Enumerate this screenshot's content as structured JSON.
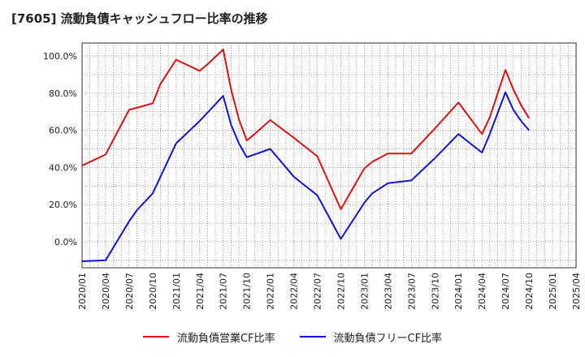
{
  "chart_data": {
    "type": "line",
    "title": "[7605]  流動負債キャッシュフロー比率の推移",
    "x": [
      "2020/01",
      "2020/04",
      "2020/07",
      "2020/08",
      "2020/10",
      "2020/11",
      "2021/01",
      "2021/04",
      "2021/05",
      "2021/07",
      "2021/08",
      "2021/09",
      "2021/10",
      "2021/11",
      "2022/01",
      "2022/04",
      "2022/07",
      "2022/10",
      "2023/01",
      "2023/02",
      "2023/04",
      "2023/07",
      "2023/10",
      "2024/01",
      "2024/04",
      "2024/05",
      "2024/07",
      "2024/08",
      "2024/09",
      "2024/10"
    ],
    "x_ticks": [
      "2020/01",
      "2020/04",
      "2020/07",
      "2020/10",
      "2021/01",
      "2021/04",
      "2021/07",
      "2021/10",
      "2022/01",
      "2022/04",
      "2022/07",
      "2022/10",
      "2023/01",
      "2023/04",
      "2023/07",
      "2023/10",
      "2024/01",
      "2024/04",
      "2024/07",
      "2024/10",
      "2025/01",
      "2025/04"
    ],
    "x_range": [
      "2020/01",
      "2025/04"
    ],
    "ylim": [
      -14,
      107
    ],
    "y_ticks": [
      0,
      20,
      40,
      60,
      80,
      100
    ],
    "y_tick_labels": [
      "0.0%",
      "20.0%",
      "40.0%",
      "60.0%",
      "80.0%",
      "100.0%"
    ],
    "grid": true,
    "legend_position": "bottom-center",
    "series": [
      {
        "name": "流動負債営業CF比率",
        "color": "#dd1111",
        "points": [
          [
            "2020/01",
            41
          ],
          [
            "2020/04",
            47
          ],
          [
            "2020/07",
            71
          ],
          [
            "2020/10",
            74.5
          ],
          [
            "2020/11",
            85
          ],
          [
            "2021/01",
            98
          ],
          [
            "2021/04",
            92
          ],
          [
            "2021/05",
            95.5
          ],
          [
            "2021/07",
            103.5
          ],
          [
            "2021/08",
            82
          ],
          [
            "2021/09",
            66
          ],
          [
            "2021/10",
            54.5
          ],
          [
            "2021/11",
            58
          ],
          [
            "2022/01",
            65.5
          ],
          [
            "2022/04",
            56
          ],
          [
            "2022/07",
            46
          ],
          [
            "2022/10",
            17.5
          ],
          [
            "2023/01",
            39.5
          ],
          [
            "2023/02",
            43
          ],
          [
            "2023/04",
            47.5
          ],
          [
            "2023/07",
            47.5
          ],
          [
            "2023/10",
            61
          ],
          [
            "2024/01",
            75
          ],
          [
            "2024/04",
            58
          ],
          [
            "2024/05",
            67
          ],
          [
            "2024/07",
            92.5
          ],
          [
            "2024/08",
            82
          ],
          [
            "2024/09",
            73.5
          ],
          [
            "2024/10",
            66.5
          ]
        ]
      },
      {
        "name": "流動負債フリーCF比率",
        "color": "#1111dd",
        "points": [
          [
            "2020/01",
            -10.5
          ],
          [
            "2020/04",
            -10
          ],
          [
            "2020/07",
            11
          ],
          [
            "2020/08",
            17
          ],
          [
            "2020/10",
            26
          ],
          [
            "2020/11",
            35
          ],
          [
            "2021/01",
            53
          ],
          [
            "2021/04",
            65
          ],
          [
            "2021/05",
            69.5
          ],
          [
            "2021/07",
            78.5
          ],
          [
            "2021/08",
            63
          ],
          [
            "2021/09",
            53
          ],
          [
            "2021/10",
            45.5
          ],
          [
            "2021/11",
            47
          ],
          [
            "2022/01",
            50
          ],
          [
            "2022/04",
            35
          ],
          [
            "2022/07",
            25
          ],
          [
            "2022/10",
            1.5
          ],
          [
            "2023/01",
            21
          ],
          [
            "2023/02",
            26
          ],
          [
            "2023/04",
            31.5
          ],
          [
            "2023/07",
            33
          ],
          [
            "2023/10",
            45
          ],
          [
            "2024/01",
            58
          ],
          [
            "2024/04",
            48
          ],
          [
            "2024/05",
            58
          ],
          [
            "2024/07",
            80.5
          ],
          [
            "2024/08",
            71
          ],
          [
            "2024/09",
            65
          ],
          [
            "2024/10",
            60
          ]
        ]
      }
    ]
  }
}
